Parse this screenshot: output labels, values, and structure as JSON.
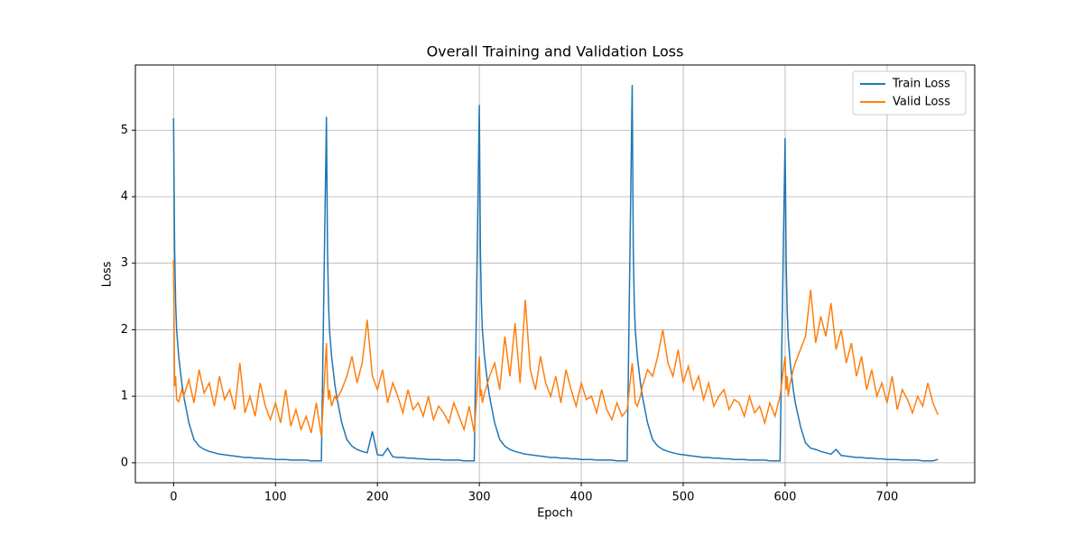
{
  "chart_data": {
    "type": "line",
    "title": "Overall Training and Validation Loss",
    "xlabel": "Epoch",
    "ylabel": "Loss",
    "x": [
      0,
      1,
      2,
      3,
      5,
      8,
      10,
      15,
      20,
      25,
      30,
      35,
      40,
      45,
      50,
      55,
      60,
      65,
      70,
      75,
      80,
      85,
      90,
      95,
      100,
      105,
      110,
      115,
      120,
      125,
      130,
      135,
      140,
      145,
      150,
      151,
      152,
      153,
      155,
      158,
      160,
      165,
      170,
      175,
      180,
      185,
      190,
      195,
      200,
      205,
      210,
      215,
      220,
      225,
      230,
      235,
      240,
      245,
      250,
      255,
      260,
      265,
      270,
      275,
      280,
      285,
      290,
      295,
      300,
      301,
      302,
      303,
      305,
      308,
      310,
      315,
      320,
      325,
      330,
      335,
      340,
      345,
      350,
      355,
      360,
      365,
      370,
      375,
      380,
      385,
      390,
      395,
      400,
      405,
      410,
      415,
      420,
      425,
      430,
      435,
      440,
      445,
      450,
      451,
      452,
      453,
      455,
      458,
      460,
      465,
      470,
      475,
      480,
      485,
      490,
      495,
      500,
      505,
      510,
      515,
      520,
      525,
      530,
      535,
      540,
      545,
      550,
      555,
      560,
      565,
      570,
      575,
      580,
      585,
      590,
      595,
      600,
      601,
      602,
      603,
      605,
      608,
      610,
      615,
      620,
      625,
      630,
      635,
      640,
      645,
      650,
      655,
      660,
      665,
      670,
      675,
      680,
      685,
      690,
      695,
      700,
      705,
      710,
      715,
      720,
      725,
      730,
      735,
      740,
      745,
      750
    ],
    "series": [
      {
        "name": "Train Loss",
        "color": "#1f77b4",
        "values": [
          5.18,
          3.2,
          2.4,
          2.0,
          1.6,
          1.2,
          1.0,
          0.6,
          0.35,
          0.25,
          0.2,
          0.17,
          0.15,
          0.13,
          0.12,
          0.11,
          0.1,
          0.09,
          0.08,
          0.08,
          0.07,
          0.07,
          0.06,
          0.06,
          0.05,
          0.05,
          0.05,
          0.04,
          0.04,
          0.04,
          0.04,
          0.03,
          0.03,
          0.03,
          5.2,
          3.2,
          2.4,
          2.0,
          1.6,
          1.2,
          1.0,
          0.6,
          0.35,
          0.25,
          0.2,
          0.17,
          0.15,
          0.47,
          0.12,
          0.11,
          0.22,
          0.09,
          0.08,
          0.08,
          0.07,
          0.07,
          0.06,
          0.06,
          0.05,
          0.05,
          0.05,
          0.04,
          0.04,
          0.04,
          0.04,
          0.03,
          0.03,
          0.03,
          5.38,
          3.2,
          2.4,
          2.0,
          1.6,
          1.2,
          1.0,
          0.6,
          0.35,
          0.25,
          0.2,
          0.17,
          0.15,
          0.13,
          0.12,
          0.11,
          0.1,
          0.09,
          0.08,
          0.08,
          0.07,
          0.07,
          0.06,
          0.06,
          0.05,
          0.05,
          0.05,
          0.04,
          0.04,
          0.04,
          0.04,
          0.03,
          0.03,
          0.03,
          5.68,
          3.2,
          2.4,
          2.0,
          1.6,
          1.2,
          1.0,
          0.6,
          0.35,
          0.25,
          0.2,
          0.17,
          0.15,
          0.13,
          0.12,
          0.11,
          0.1,
          0.09,
          0.08,
          0.08,
          0.07,
          0.07,
          0.06,
          0.06,
          0.05,
          0.05,
          0.05,
          0.04,
          0.04,
          0.04,
          0.04,
          0.03,
          0.03,
          0.03,
          4.88,
          3.0,
          2.3,
          1.9,
          1.5,
          1.1,
          0.9,
          0.55,
          0.3,
          0.22,
          0.2,
          0.17,
          0.15,
          0.13,
          0.2,
          0.11,
          0.1,
          0.09,
          0.08,
          0.08,
          0.07,
          0.07,
          0.06,
          0.06,
          0.05,
          0.05,
          0.05,
          0.04,
          0.04,
          0.04,
          0.04,
          0.03,
          0.03,
          0.03,
          0.05
        ]
      },
      {
        "name": "Valid Loss",
        "color": "#ff7f0e",
        "values": [
          3.05,
          1.15,
          1.3,
          0.95,
          0.92,
          1.1,
          1.0,
          1.25,
          0.9,
          1.4,
          1.05,
          1.2,
          0.85,
          1.3,
          0.95,
          1.1,
          0.8,
          1.5,
          0.75,
          1.0,
          0.7,
          1.2,
          0.85,
          0.65,
          0.9,
          0.6,
          1.1,
          0.55,
          0.8,
          0.5,
          0.7,
          0.45,
          0.9,
          0.4,
          1.8,
          1.2,
          0.95,
          1.1,
          0.85,
          1.0,
          0.95,
          1.1,
          1.3,
          1.6,
          1.2,
          1.5,
          2.15,
          1.3,
          1.1,
          1.4,
          0.9,
          1.2,
          1.0,
          0.75,
          1.1,
          0.8,
          0.9,
          0.7,
          1.0,
          0.65,
          0.85,
          0.75,
          0.6,
          0.9,
          0.7,
          0.5,
          0.85,
          0.45,
          1.6,
          1.0,
          1.1,
          0.9,
          1.05,
          1.2,
          1.3,
          1.5,
          1.1,
          1.9,
          1.3,
          2.1,
          1.2,
          2.45,
          1.4,
          1.1,
          1.6,
          1.2,
          1.0,
          1.3,
          0.9,
          1.4,
          1.1,
          0.85,
          1.2,
          0.95,
          1.0,
          0.75,
          1.1,
          0.8,
          0.65,
          0.9,
          0.7,
          0.8,
          1.5,
          1.3,
          1.1,
          0.9,
          0.85,
          1.0,
          1.15,
          1.4,
          1.3,
          1.6,
          2.0,
          1.5,
          1.3,
          1.7,
          1.2,
          1.45,
          1.1,
          1.3,
          0.95,
          1.2,
          0.85,
          1.0,
          1.1,
          0.8,
          0.95,
          0.9,
          0.7,
          1.0,
          0.75,
          0.85,
          0.6,
          0.9,
          0.7,
          1.0,
          1.6,
          1.1,
          1.3,
          1.0,
          1.2,
          1.4,
          1.5,
          1.7,
          1.9,
          2.6,
          1.8,
          2.2,
          1.9,
          2.4,
          1.7,
          2.0,
          1.5,
          1.8,
          1.3,
          1.6,
          1.1,
          1.4,
          1.0,
          1.2,
          0.9,
          1.3,
          0.8,
          1.1,
          0.95,
          0.75,
          1.0,
          0.85,
          1.2,
          0.9,
          0.72
        ]
      }
    ],
    "xlim": [
      -37.5,
      786
    ],
    "ylim": [
      -0.3,
      5.98
    ],
    "xticks": [
      0,
      100,
      200,
      300,
      400,
      500,
      600,
      700
    ],
    "yticks": [
      0,
      1,
      2,
      3,
      4,
      5
    ],
    "grid": true,
    "legend": "upper right"
  }
}
